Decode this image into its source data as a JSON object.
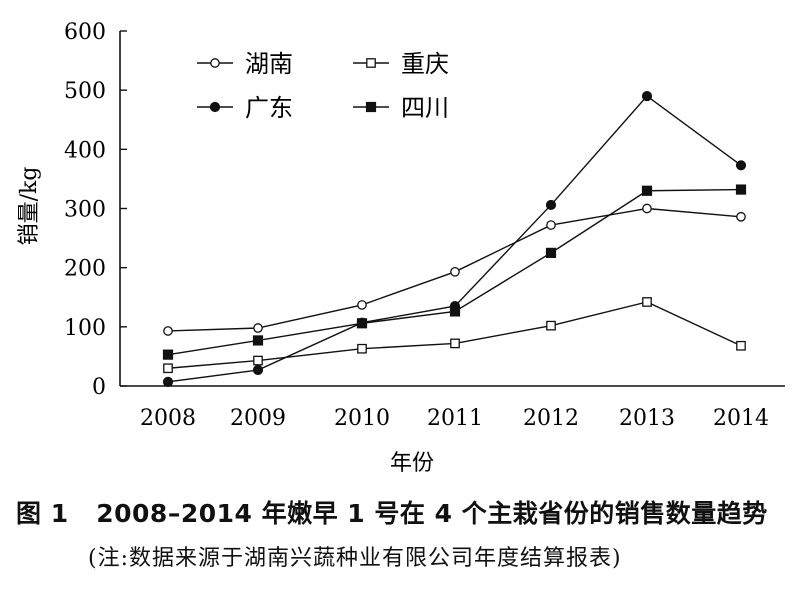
{
  "chart_data": {
    "type": "line",
    "title": "",
    "xlabel": "年份",
    "ylabel": "销量/kg",
    "categories": [
      "2008",
      "2009",
      "2010",
      "2011",
      "2012",
      "2013",
      "2014"
    ],
    "ylim": [
      0,
      600
    ],
    "yticks": [
      "0",
      "100",
      "200",
      "300",
      "400",
      "500",
      "600"
    ],
    "grid": false,
    "legend_position": "top-left",
    "series": [
      {
        "name": "湖南",
        "marker": "open-circle",
        "values": [
          93,
          98,
          137,
          193,
          272,
          300,
          286
        ]
      },
      {
        "name": "重庆",
        "marker": "open-square",
        "values": [
          30,
          43,
          63,
          72,
          102,
          142,
          68
        ]
      },
      {
        "name": "广东",
        "marker": "filled-circle",
        "values": [
          7,
          27,
          107,
          135,
          306,
          490,
          373
        ]
      },
      {
        "name": "四川",
        "marker": "filled-square",
        "values": [
          53,
          77,
          106,
          126,
          225,
          330,
          332
        ]
      }
    ],
    "line_color": "#111111"
  },
  "caption": {
    "label": "图 1",
    "text": "2008–2014 年嫩早 1 号在 4 个主栽省份的销售数量趋势"
  },
  "note": "(注:数据来源于湖南兴蔬种业有限公司年度结算报表)"
}
